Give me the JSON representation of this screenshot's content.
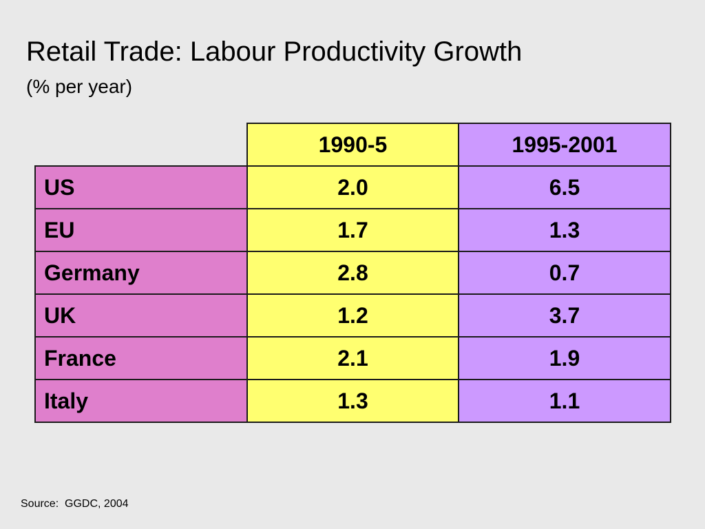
{
  "slide": {
    "title": "Retail Trade: Labour Productivity Growth",
    "subtitle": "(% per year)",
    "source": "Source:  GGDC, 2004"
  },
  "table": {
    "columns": [
      "1990-5",
      "1995-2001"
    ],
    "rows": [
      {
        "label": "US",
        "values": [
          "2.0",
          "6.5"
        ]
      },
      {
        "label": "EU",
        "values": [
          "1.7",
          "1.3"
        ]
      },
      {
        "label": "Germany",
        "values": [
          "2.8",
          "0.7"
        ]
      },
      {
        "label": "UK",
        "values": [
          "1.2",
          "3.7"
        ]
      },
      {
        "label": "France",
        "values": [
          "2.1",
          "1.9"
        ]
      },
      {
        "label": "Italy",
        "values": [
          "1.3",
          "1.1"
        ]
      }
    ]
  },
  "colors": {
    "background": "#e9e9e9",
    "col1_fill": "#ffff70",
    "col2_fill": "#cc99ff",
    "label_fill": "#df7fcc"
  }
}
